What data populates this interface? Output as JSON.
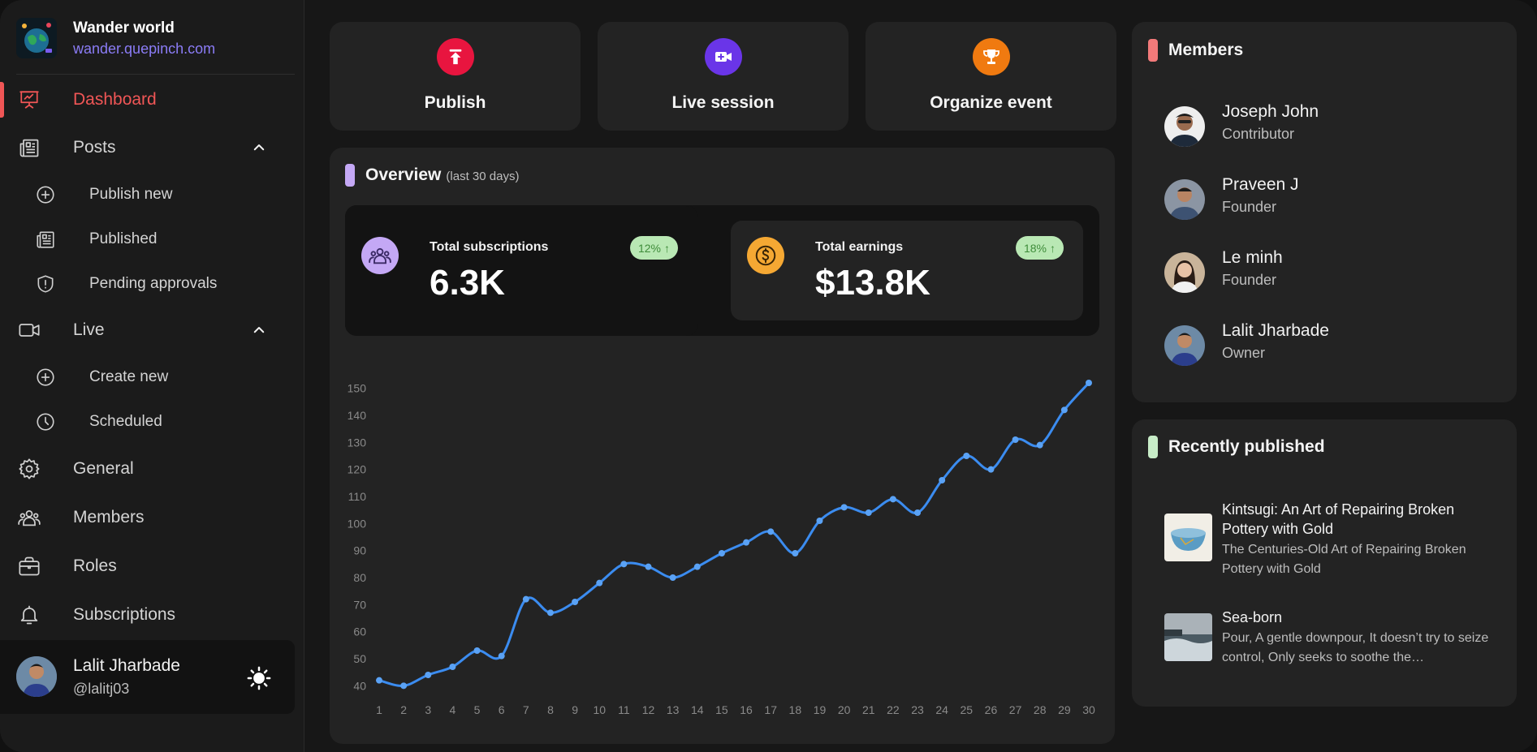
{
  "brand": {
    "name": "Wander world",
    "url": "wander.quepinch.com"
  },
  "sidebar": {
    "items": [
      {
        "label": "Dashboard",
        "icon": "presentation-icon",
        "active": true
      },
      {
        "label": "Posts",
        "icon": "newspaper-icon",
        "expanded": true
      },
      {
        "label": "Publish new",
        "icon": "plus-circle-icon"
      },
      {
        "label": "Published",
        "icon": "newspaper-icon"
      },
      {
        "label": "Pending approvals",
        "icon": "shield-icon"
      },
      {
        "label": "Live",
        "icon": "video-icon",
        "expanded": true
      },
      {
        "label": "Create new",
        "icon": "plus-circle-icon"
      },
      {
        "label": "Scheduled",
        "icon": "clock-icon"
      },
      {
        "label": "General",
        "icon": "gear-icon"
      },
      {
        "label": "Members",
        "icon": "users-icon"
      },
      {
        "label": "Roles",
        "icon": "briefcase-icon"
      },
      {
        "label": "Subscriptions",
        "icon": "bell-icon"
      }
    ]
  },
  "profile": {
    "name": "Lalit Jharbade",
    "handle": "@lalitj03"
  },
  "actions": [
    {
      "label": "Publish",
      "icon": "upload-icon",
      "color": "#e8153f"
    },
    {
      "label": "Live session",
      "icon": "video-plus-icon",
      "color": "#6a35e8"
    },
    {
      "label": "Organize event",
      "icon": "trophy-icon",
      "color": "#f07a10"
    }
  ],
  "overview": {
    "title": "Overview",
    "subtitle": "(last 30 days)",
    "stats": [
      {
        "title": "Total subscriptions",
        "value": "6.3K",
        "badge": "12%",
        "icon": "users-icon",
        "icon_color": "#c4a8f5"
      },
      {
        "title": "Total earnings",
        "value": "$13.8K",
        "badge": "18%",
        "icon": "dollar-icon",
        "icon_color": "#f5a833"
      }
    ]
  },
  "chart_data": {
    "type": "line",
    "x": [
      1,
      2,
      3,
      4,
      5,
      6,
      7,
      8,
      9,
      10,
      11,
      12,
      13,
      14,
      15,
      16,
      17,
      18,
      19,
      20,
      21,
      22,
      23,
      24,
      25,
      26,
      27,
      28,
      29,
      30
    ],
    "series": [
      {
        "values": [
          42,
          40,
          44,
          47,
          53,
          51,
          72,
          67,
          71,
          78,
          85,
          84,
          80,
          84,
          89,
          93,
          97,
          89,
          101,
          106,
          104,
          109,
          104,
          116,
          125,
          120,
          131,
          129,
          142,
          152
        ],
        "color": "#3b8cf0"
      }
    ],
    "y_ticks": [
      40,
      50,
      60,
      70,
      80,
      90,
      100,
      110,
      120,
      130,
      140,
      150
    ],
    "ylim": [
      38,
      155
    ],
    "grid": false
  },
  "members": {
    "title": "Members",
    "list": [
      {
        "name": "Joseph John",
        "role": "Contributor"
      },
      {
        "name": "Praveen J",
        "role": "Founder"
      },
      {
        "name": "Le minh",
        "role": "Founder"
      },
      {
        "name": "Lalit Jharbade",
        "role": "Owner"
      }
    ]
  },
  "recent": {
    "title": "Recently published",
    "posts": [
      {
        "title": "Kintsugi: An Art of Repairing Broken Pottery with Gold",
        "desc": "The Centuries-Old Art of Repairing Broken Pottery with Gold"
      },
      {
        "title": "Sea-born",
        "desc": "Pour, A gentle downpour, It doesn’t try to seize control, Only seeks to soothe the…"
      }
    ]
  },
  "colors": {
    "accent_red": "#f05656",
    "brand_url": "#8b7cf6",
    "members_bar": "#f27a7a",
    "recent_bar": "#c7ecc7",
    "overview_bar": "#c4a8f5",
    "badge_bg": "#b9e8b4"
  }
}
